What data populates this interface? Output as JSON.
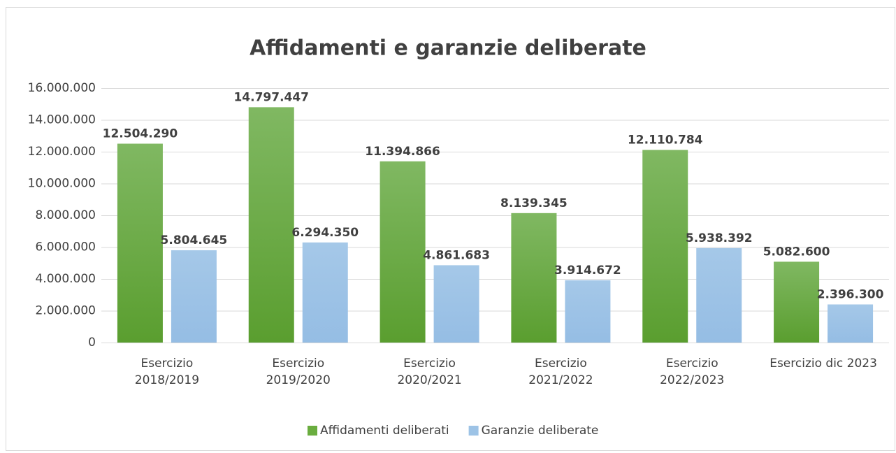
{
  "chart_data": {
    "type": "bar",
    "title": "Affidamenti e garanzie deliberate",
    "categories": [
      "Esercizio\n2018/2019",
      "Esercizio\n2019/2020",
      "Esercizio\n2020/2021",
      "Esercizio\n2021/2022",
      "Esercizio\n2022/2023",
      "Esercizio dic 2023"
    ],
    "series": [
      {
        "name": "Affidamenti deliberati",
        "color": "#6aad3f",
        "values": [
          12504290,
          14797447,
          11394866,
          8139345,
          12110784,
          5082600
        ],
        "value_labels": [
          "12.504.290",
          "14.797.447",
          "11.394.866",
          "8.139.345",
          "12.110.784",
          "5.082.600"
        ]
      },
      {
        "name": "Garanzie deliberate",
        "color": "#9dc3e6",
        "values": [
          5804645,
          6294350,
          4861683,
          3914672,
          5938392,
          2396300
        ],
        "value_labels": [
          "5.804.645",
          "6.294.350",
          "4.861.683",
          "3.914.672",
          "5.938.392",
          "2.396.300"
        ]
      }
    ],
    "ylim": [
      0,
      16000000
    ],
    "yticks": [
      0,
      {
        "value": 2000000,
        "label": "2.000.000"
      },
      {
        "value": 4000000,
        "label": "4.000.000"
      },
      {
        "value": 6000000,
        "label": "6.000.000"
      },
      {
        "value": 8000000,
        "label": "8.000.000"
      },
      {
        "value": 10000000,
        "label": "10.000.000"
      },
      {
        "value": 12000000,
        "label": "12.000.000"
      },
      {
        "value": 14000000,
        "label": "14.000.000"
      },
      {
        "value": 16000000,
        "label": "16.000.000"
      }
    ],
    "grid": true,
    "legend": "bottom"
  }
}
